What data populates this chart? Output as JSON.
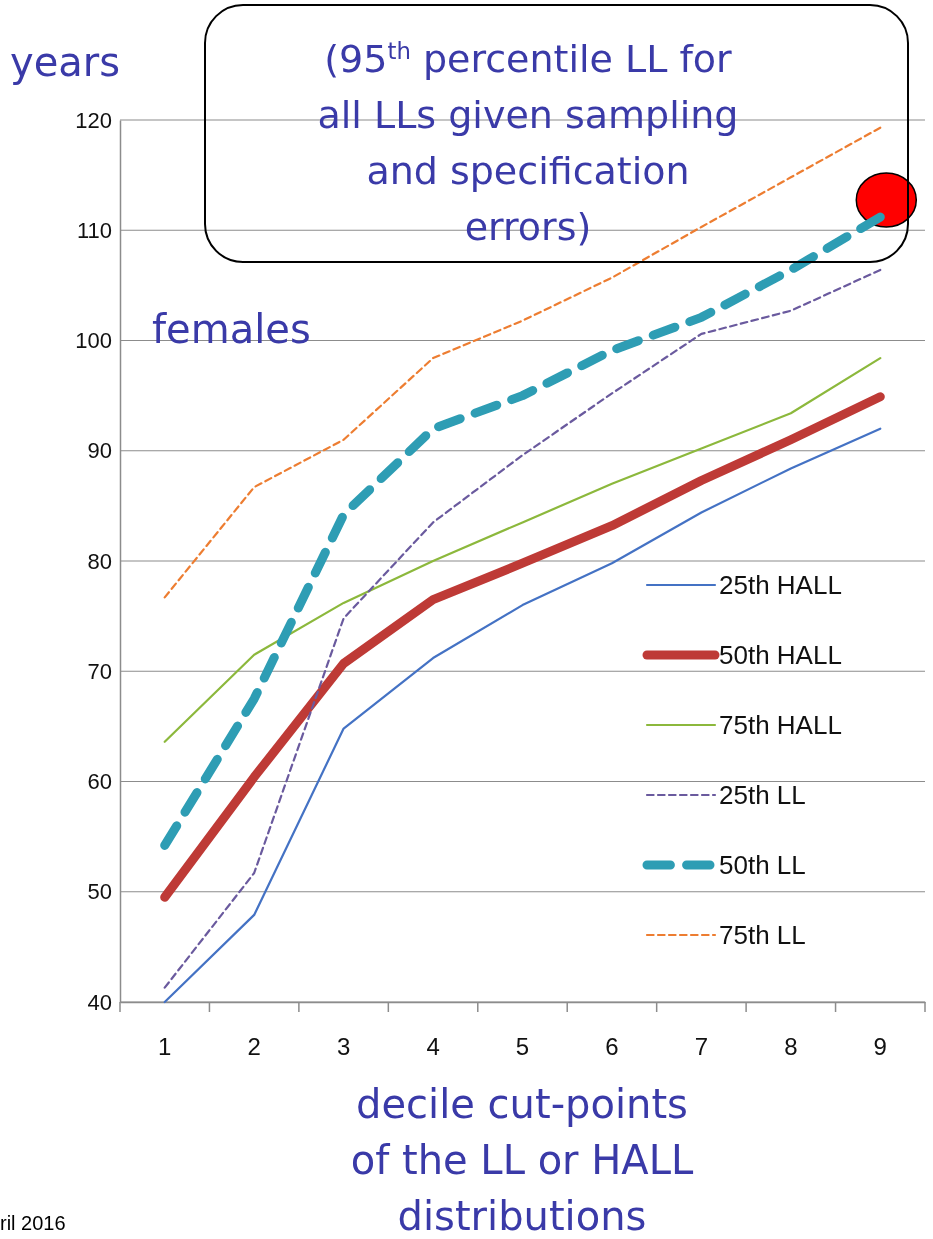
{
  "chart_data": {
    "type": "line",
    "ylabel": "years",
    "xlabel": "decile cut-points of the LL or HALL distributions",
    "categories": [
      "1",
      "2",
      "3",
      "4",
      "5",
      "6",
      "7",
      "8",
      "9"
    ],
    "ylim": [
      40,
      120
    ],
    "yticks": [
      40,
      50,
      60,
      70,
      80,
      90,
      100,
      110,
      120
    ],
    "grid": "y",
    "legend": "right",
    "marker": "none",
    "annotations": [
      "(95$^{th}$ percentile LL for all LLs given sampling and specification errors)",
      "females",
      "ril 2016"
    ],
    "series": [
      {
        "name": "25th HALL",
        "color": "#4472c4",
        "line_style": "solid",
        "values": [
          40,
          47.9,
          64.8,
          71.2,
          76,
          79.8,
          84.4,
          88.4,
          92
        ]
      },
      {
        "name": "50th HALL",
        "color": "#be3a36",
        "line_style": "solid",
        "values": [
          49.5,
          60.4,
          70.7,
          76.5,
          79.8,
          83.2,
          87.3,
          91,
          94.9
        ]
      },
      {
        "name": "75th HALL",
        "color": "#8cb83c",
        "line_style": "solid",
        "values": [
          63.6,
          71.5,
          76.2,
          80,
          83.5,
          87,
          90.2,
          93.4,
          98.4
        ]
      },
      {
        "name": "25th LL",
        "color": "#6a5a9e",
        "line_style": "dashed",
        "values": [
          41.3,
          51.7,
          74.8,
          83.5,
          89.6,
          95.2,
          100.6,
          102.7,
          106.4
        ]
      },
      {
        "name": "50th LL",
        "color": "#2e9db4",
        "line_style": "dashed",
        "values": [
          54.2,
          67.5,
          84.2,
          92,
          95,
          99.1,
          102.1,
          106.4,
          111.2
        ]
      },
      {
        "name": "75th LL",
        "color": "#ed7d31",
        "line_style": "dashed",
        "values": [
          76.7,
          86.7,
          91,
          98.4,
          101.8,
          105.7,
          110.3,
          114.8,
          119.3
        ]
      }
    ]
  }
}
